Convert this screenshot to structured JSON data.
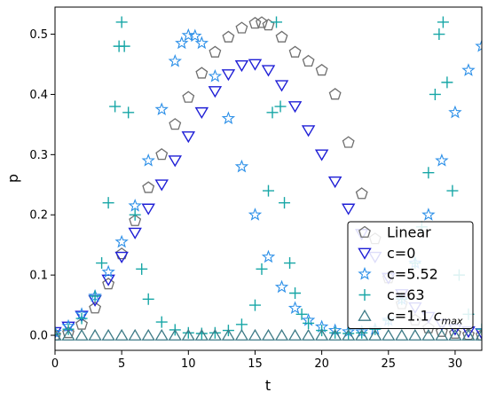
{
  "chart_data": {
    "type": "scatter",
    "xlabel": "t",
    "ylabel": "p",
    "xlim": [
      0,
      32
    ],
    "ylim": [
      -0.025,
      0.545
    ],
    "xticks": [
      0,
      5,
      10,
      15,
      20,
      25,
      30
    ],
    "yticks": [
      0.0,
      0.1,
      0.2,
      0.3,
      0.4,
      0.5
    ],
    "xtick_labels": [
      "0",
      "5",
      "10",
      "15",
      "20",
      "25",
      "30"
    ],
    "ytick_labels": [
      "0.0",
      "0.1",
      "0.2",
      "0.3",
      "0.4",
      "0.5"
    ],
    "grid": false,
    "legend": {
      "placement": "lower-right",
      "entries": [
        {
          "label": "Linear",
          "marker": "pentagon"
        },
        {
          "label": "c=0",
          "marker": "triangle-down"
        },
        {
          "label": "c=5.52",
          "marker": "star"
        },
        {
          "label": "c=63",
          "marker": "plus"
        },
        {
          "label": "c=1.1 ",
          "label_math": "c",
          "label_math_sub": "max",
          "marker": "triangle-up"
        }
      ]
    },
    "series": [
      {
        "name": "Linear",
        "marker": "pentagon",
        "color": "#6e6e6e",
        "x": [
          0,
          1,
          2,
          3,
          4,
          5,
          6,
          7,
          8,
          9,
          10,
          11,
          12,
          13,
          14,
          15,
          15.5,
          16,
          17,
          18,
          19,
          20,
          21,
          22,
          23,
          24,
          25,
          26,
          27,
          28,
          29,
          30,
          31,
          32
        ],
        "y": [
          0.0,
          0.004,
          0.018,
          0.045,
          0.085,
          0.135,
          0.19,
          0.245,
          0.3,
          0.35,
          0.395,
          0.435,
          0.47,
          0.495,
          0.51,
          0.518,
          0.519,
          0.515,
          0.495,
          0.47,
          0.455,
          0.44,
          0.4,
          0.32,
          0.235,
          0.16,
          0.095,
          0.052,
          0.025,
          0.012,
          0.006,
          0.003,
          0.001,
          0.0
        ]
      },
      {
        "name": "c=0",
        "marker": "triangle-down",
        "color": "#1f1fd6",
        "x": [
          0,
          1,
          2,
          3,
          4,
          5,
          6,
          7,
          8,
          9,
          10,
          11,
          12,
          13,
          14,
          15,
          16,
          17,
          18,
          19,
          20,
          21,
          22,
          23,
          24,
          25,
          26,
          27,
          28,
          29,
          30,
          31,
          32
        ],
        "y": [
          0.005,
          0.014,
          0.032,
          0.058,
          0.092,
          0.13,
          0.17,
          0.21,
          0.25,
          0.29,
          0.33,
          0.37,
          0.405,
          0.433,
          0.448,
          0.45,
          0.44,
          0.415,
          0.38,
          0.34,
          0.3,
          0.255,
          0.21,
          0.168,
          0.13,
          0.095,
          0.068,
          0.046,
          0.03,
          0.018,
          0.01,
          0.006,
          0.003
        ]
      },
      {
        "name": "c=5.52",
        "marker": "star",
        "color": "#2b8fe8",
        "x": [
          0,
          1,
          2,
          3,
          4,
          5,
          6,
          7,
          8,
          9,
          9.5,
          10,
          10.5,
          11,
          12,
          13,
          14,
          15,
          16,
          17,
          18,
          19,
          20,
          21,
          22,
          23,
          24,
          25,
          26,
          27,
          28,
          29,
          30,
          31,
          32
        ],
        "y": [
          0.005,
          0.015,
          0.035,
          0.065,
          0.105,
          0.155,
          0.215,
          0.29,
          0.375,
          0.455,
          0.485,
          0.498,
          0.497,
          0.485,
          0.43,
          0.36,
          0.28,
          0.2,
          0.13,
          0.08,
          0.045,
          0.025,
          0.014,
          0.008,
          0.006,
          0.006,
          0.01,
          0.025,
          0.06,
          0.12,
          0.2,
          0.29,
          0.37,
          0.44,
          0.48
        ]
      },
      {
        "name": "c=63",
        "marker": "plus",
        "color": "#17a6a6",
        "x": [
          0,
          1,
          2,
          3,
          3.5,
          4,
          4.5,
          4.8,
          5,
          5.2,
          5.5,
          6,
          6.5,
          7,
          8,
          9,
          10,
          11,
          12,
          13,
          14,
          15,
          15.5,
          16,
          16.3,
          16.6,
          16.9,
          17.2,
          17.6,
          18,
          18.5,
          19,
          20,
          21,
          22,
          23,
          24,
          25,
          26,
          27,
          27.5,
          28,
          28.5,
          28.8,
          29.1,
          29.4,
          29.8,
          30.3,
          31,
          32
        ],
        "y": [
          0.002,
          0.01,
          0.028,
          0.065,
          0.12,
          0.22,
          0.38,
          0.48,
          0.52,
          0.48,
          0.37,
          0.2,
          0.11,
          0.06,
          0.022,
          0.009,
          0.004,
          0.003,
          0.004,
          0.008,
          0.018,
          0.05,
          0.11,
          0.24,
          0.37,
          0.52,
          0.38,
          0.22,
          0.12,
          0.07,
          0.035,
          0.02,
          0.008,
          0.004,
          0.003,
          0.004,
          0.01,
          0.025,
          0.06,
          0.12,
          0.18,
          0.27,
          0.4,
          0.5,
          0.52,
          0.42,
          0.24,
          0.1,
          0.035,
          0.01
        ]
      },
      {
        "name": "c=1.1 cmax",
        "marker": "triangle-up",
        "color": "#3c7a86",
        "x": [
          0,
          1,
          2,
          3,
          4,
          5,
          6,
          7,
          8,
          9,
          10,
          11,
          12,
          13,
          14,
          15,
          16,
          17,
          18,
          19,
          20,
          21,
          22,
          23,
          24,
          25,
          26,
          27,
          28,
          29,
          30,
          31,
          32
        ],
        "y": [
          0.0,
          0.0,
          0.0,
          0.0,
          0.0,
          0.0,
          0.0,
          0.0,
          0.0,
          0.0,
          0.0,
          0.0,
          0.0,
          0.0,
          0.0,
          0.0,
          0.0,
          0.0,
          0.0,
          0.0,
          0.0,
          0.0,
          0.0,
          0.0,
          0.0,
          0.0,
          0.0,
          0.0,
          0.0,
          0.0,
          0.0,
          0.0,
          0.0
        ]
      }
    ]
  }
}
